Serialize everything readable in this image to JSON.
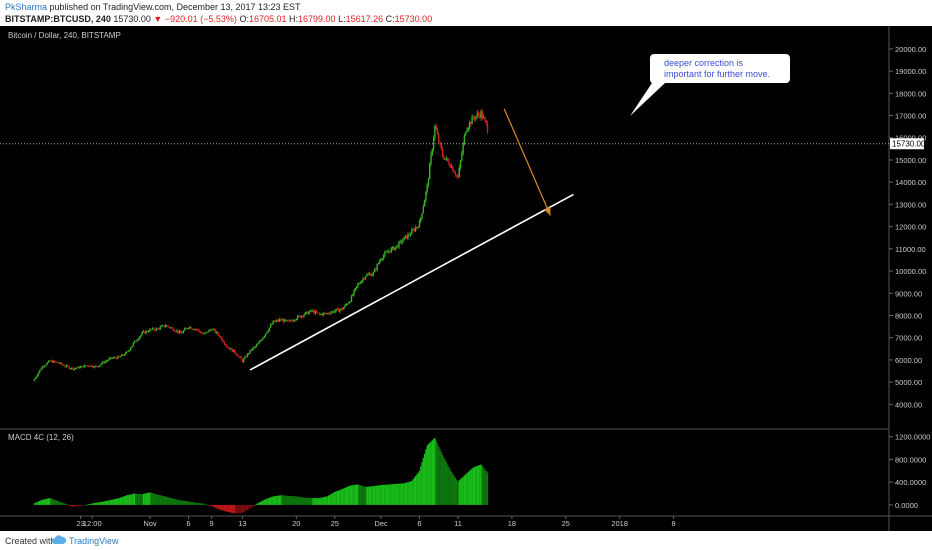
{
  "header": {
    "author": "PkSharma",
    "published": "published on TradingView.com, December 13, 2017 13:23 EST",
    "symbol": "BITSTAMP:BTCUSD, 240",
    "last": "15730.00",
    "change": "−920.01 (−5.53%)",
    "o_label": "O:",
    "o": "16705.01",
    "h_label": "H:",
    "h": "16799.00",
    "l_label": "L:",
    "l": "15617.26",
    "c_label": "C:",
    "c": "15730.00"
  },
  "footer": {
    "created_with": "Created with",
    "brand": "TradingView"
  },
  "colors": {
    "bg": "#000000",
    "up": "#33b51e",
    "down": "#cc1f1f",
    "trend": "#ffffff",
    "arrow": "#d88a2c",
    "price_line": "#b0b0b0",
    "macd_up": "#19b219",
    "macd_dn": "#c01818"
  },
  "chart_data": [
    {
      "type": "candlestick",
      "title": "Bitcoin / Dollar, 240, BITSTAMP",
      "last_price_label": "15730.00",
      "y_ticks": [
        "20000.00",
        "19000.00",
        "18000.00",
        "17000.00",
        "16000.00",
        "15000.00",
        "14000.00",
        "13000.00",
        "12000.00",
        "11000.00",
        "10000.00",
        "9000.00",
        "8000.00",
        "7000.00",
        "6000.00",
        "5000.00",
        "4000.00"
      ],
      "ylim": [
        3250,
        20400
      ],
      "x_ticks": [
        "23",
        "12:00",
        "Nov",
        "6",
        "9",
        "13",
        "20",
        "25",
        "Dec",
        "6",
        "11",
        "18",
        "25",
        "2018",
        "8"
      ],
      "x_days": [
        -9,
        -7.5,
        0,
        5,
        8,
        12,
        19,
        24,
        30,
        35,
        40,
        47,
        54,
        61,
        68
      ],
      "series_daily_close": [
        [
          -15,
          5150
        ],
        [
          -14,
          5700
        ],
        [
          -13,
          5950
        ],
        [
          -12,
          5880
        ],
        [
          -11,
          5720
        ],
        [
          -10,
          5610
        ],
        [
          -9,
          5680
        ],
        [
          -8,
          5760
        ],
        [
          -7,
          5690
        ],
        [
          -6,
          5900
        ],
        [
          -5,
          6080
        ],
        [
          -4,
          6120
        ],
        [
          -3,
          6330
        ],
        [
          -2,
          6820
        ],
        [
          -1,
          7200
        ],
        [
          0,
          7350
        ],
        [
          1,
          7400
        ],
        [
          2,
          7560
        ],
        [
          3,
          7400
        ],
        [
          4,
          7200
        ],
        [
          5,
          7500
        ],
        [
          6,
          7380
        ],
        [
          7,
          7150
        ],
        [
          8,
          7400
        ],
        [
          9,
          7100
        ],
        [
          10,
          6600
        ],
        [
          11,
          6350
        ],
        [
          12,
          5950
        ],
        [
          13,
          6400
        ],
        [
          14,
          6700
        ],
        [
          15,
          7200
        ],
        [
          16,
          7700
        ],
        [
          17,
          7800
        ],
        [
          18,
          7700
        ],
        [
          19,
          7900
        ],
        [
          20,
          8050
        ],
        [
          21,
          8200
        ],
        [
          22,
          8050
        ],
        [
          23,
          8100
        ],
        [
          24,
          8200
        ],
        [
          25,
          8300
        ],
        [
          26,
          8700
        ],
        [
          27,
          9400
        ],
        [
          28,
          9800
        ],
        [
          29,
          9900
        ],
        [
          30,
          10600
        ],
        [
          31,
          10900
        ],
        [
          32,
          11100
        ],
        [
          33,
          11450
        ],
        [
          34,
          11750
        ],
        [
          35,
          12150
        ],
        [
          36,
          13800
        ],
        [
          37,
          16500
        ],
        [
          38,
          15200
        ],
        [
          39,
          14800
        ],
        [
          40,
          14200
        ],
        [
          41,
          16400
        ],
        [
          42,
          16900
        ],
        [
          43,
          17100
        ],
        [
          44,
          16300
        ]
      ]
    },
    {
      "type": "bar",
      "title": "MACD 4C (12, 26)",
      "y_ticks": [
        "1200.0000",
        "800.0000",
        "400.0000",
        "0.0000"
      ],
      "ylim": [
        -160,
        1300
      ],
      "series_daily": [
        [
          -15,
          30
        ],
        [
          -14,
          90
        ],
        [
          -13,
          120
        ],
        [
          -12,
          70
        ],
        [
          -11,
          20
        ],
        [
          -10,
          -30
        ],
        [
          -9,
          -20
        ],
        [
          -8,
          10
        ],
        [
          -7,
          40
        ],
        [
          -6,
          60
        ],
        [
          -5,
          90
        ],
        [
          -4,
          120
        ],
        [
          -3,
          170
        ],
        [
          -2,
          200
        ],
        [
          -1,
          190
        ],
        [
          0,
          220
        ],
        [
          1,
          180
        ],
        [
          2,
          150
        ],
        [
          3,
          110
        ],
        [
          4,
          80
        ],
        [
          5,
          60
        ],
        [
          6,
          40
        ],
        [
          7,
          20
        ],
        [
          8,
          -20
        ],
        [
          9,
          -80
        ],
        [
          10,
          -120
        ],
        [
          11,
          -150
        ],
        [
          12,
          -140
        ],
        [
          13,
          -60
        ],
        [
          14,
          30
        ],
        [
          15,
          100
        ],
        [
          16,
          150
        ],
        [
          17,
          170
        ],
        [
          18,
          160
        ],
        [
          19,
          150
        ],
        [
          20,
          130
        ],
        [
          21,
          120
        ],
        [
          22,
          120
        ],
        [
          23,
          150
        ],
        [
          24,
          230
        ],
        [
          25,
          280
        ],
        [
          26,
          340
        ],
        [
          27,
          360
        ],
        [
          28,
          320
        ],
        [
          29,
          330
        ],
        [
          30,
          350
        ],
        [
          31,
          360
        ],
        [
          32,
          370
        ],
        [
          33,
          380
        ],
        [
          34,
          420
        ],
        [
          35,
          600
        ],
        [
          36,
          1050
        ],
        [
          37,
          1180
        ],
        [
          38,
          880
        ],
        [
          39,
          620
        ],
        [
          40,
          410
        ],
        [
          41,
          540
        ],
        [
          42,
          660
        ],
        [
          43,
          710
        ],
        [
          44,
          540
        ]
      ]
    }
  ],
  "annotation": {
    "text_line1": "deeper correction is",
    "text_line2": "important for further move."
  },
  "trendline": {
    "start": [
      13,
      5550
    ],
    "end": [
      55,
      13450
    ]
  },
  "arrow": {
    "start": [
      46,
      17300
    ],
    "end": [
      52,
      12500
    ]
  }
}
